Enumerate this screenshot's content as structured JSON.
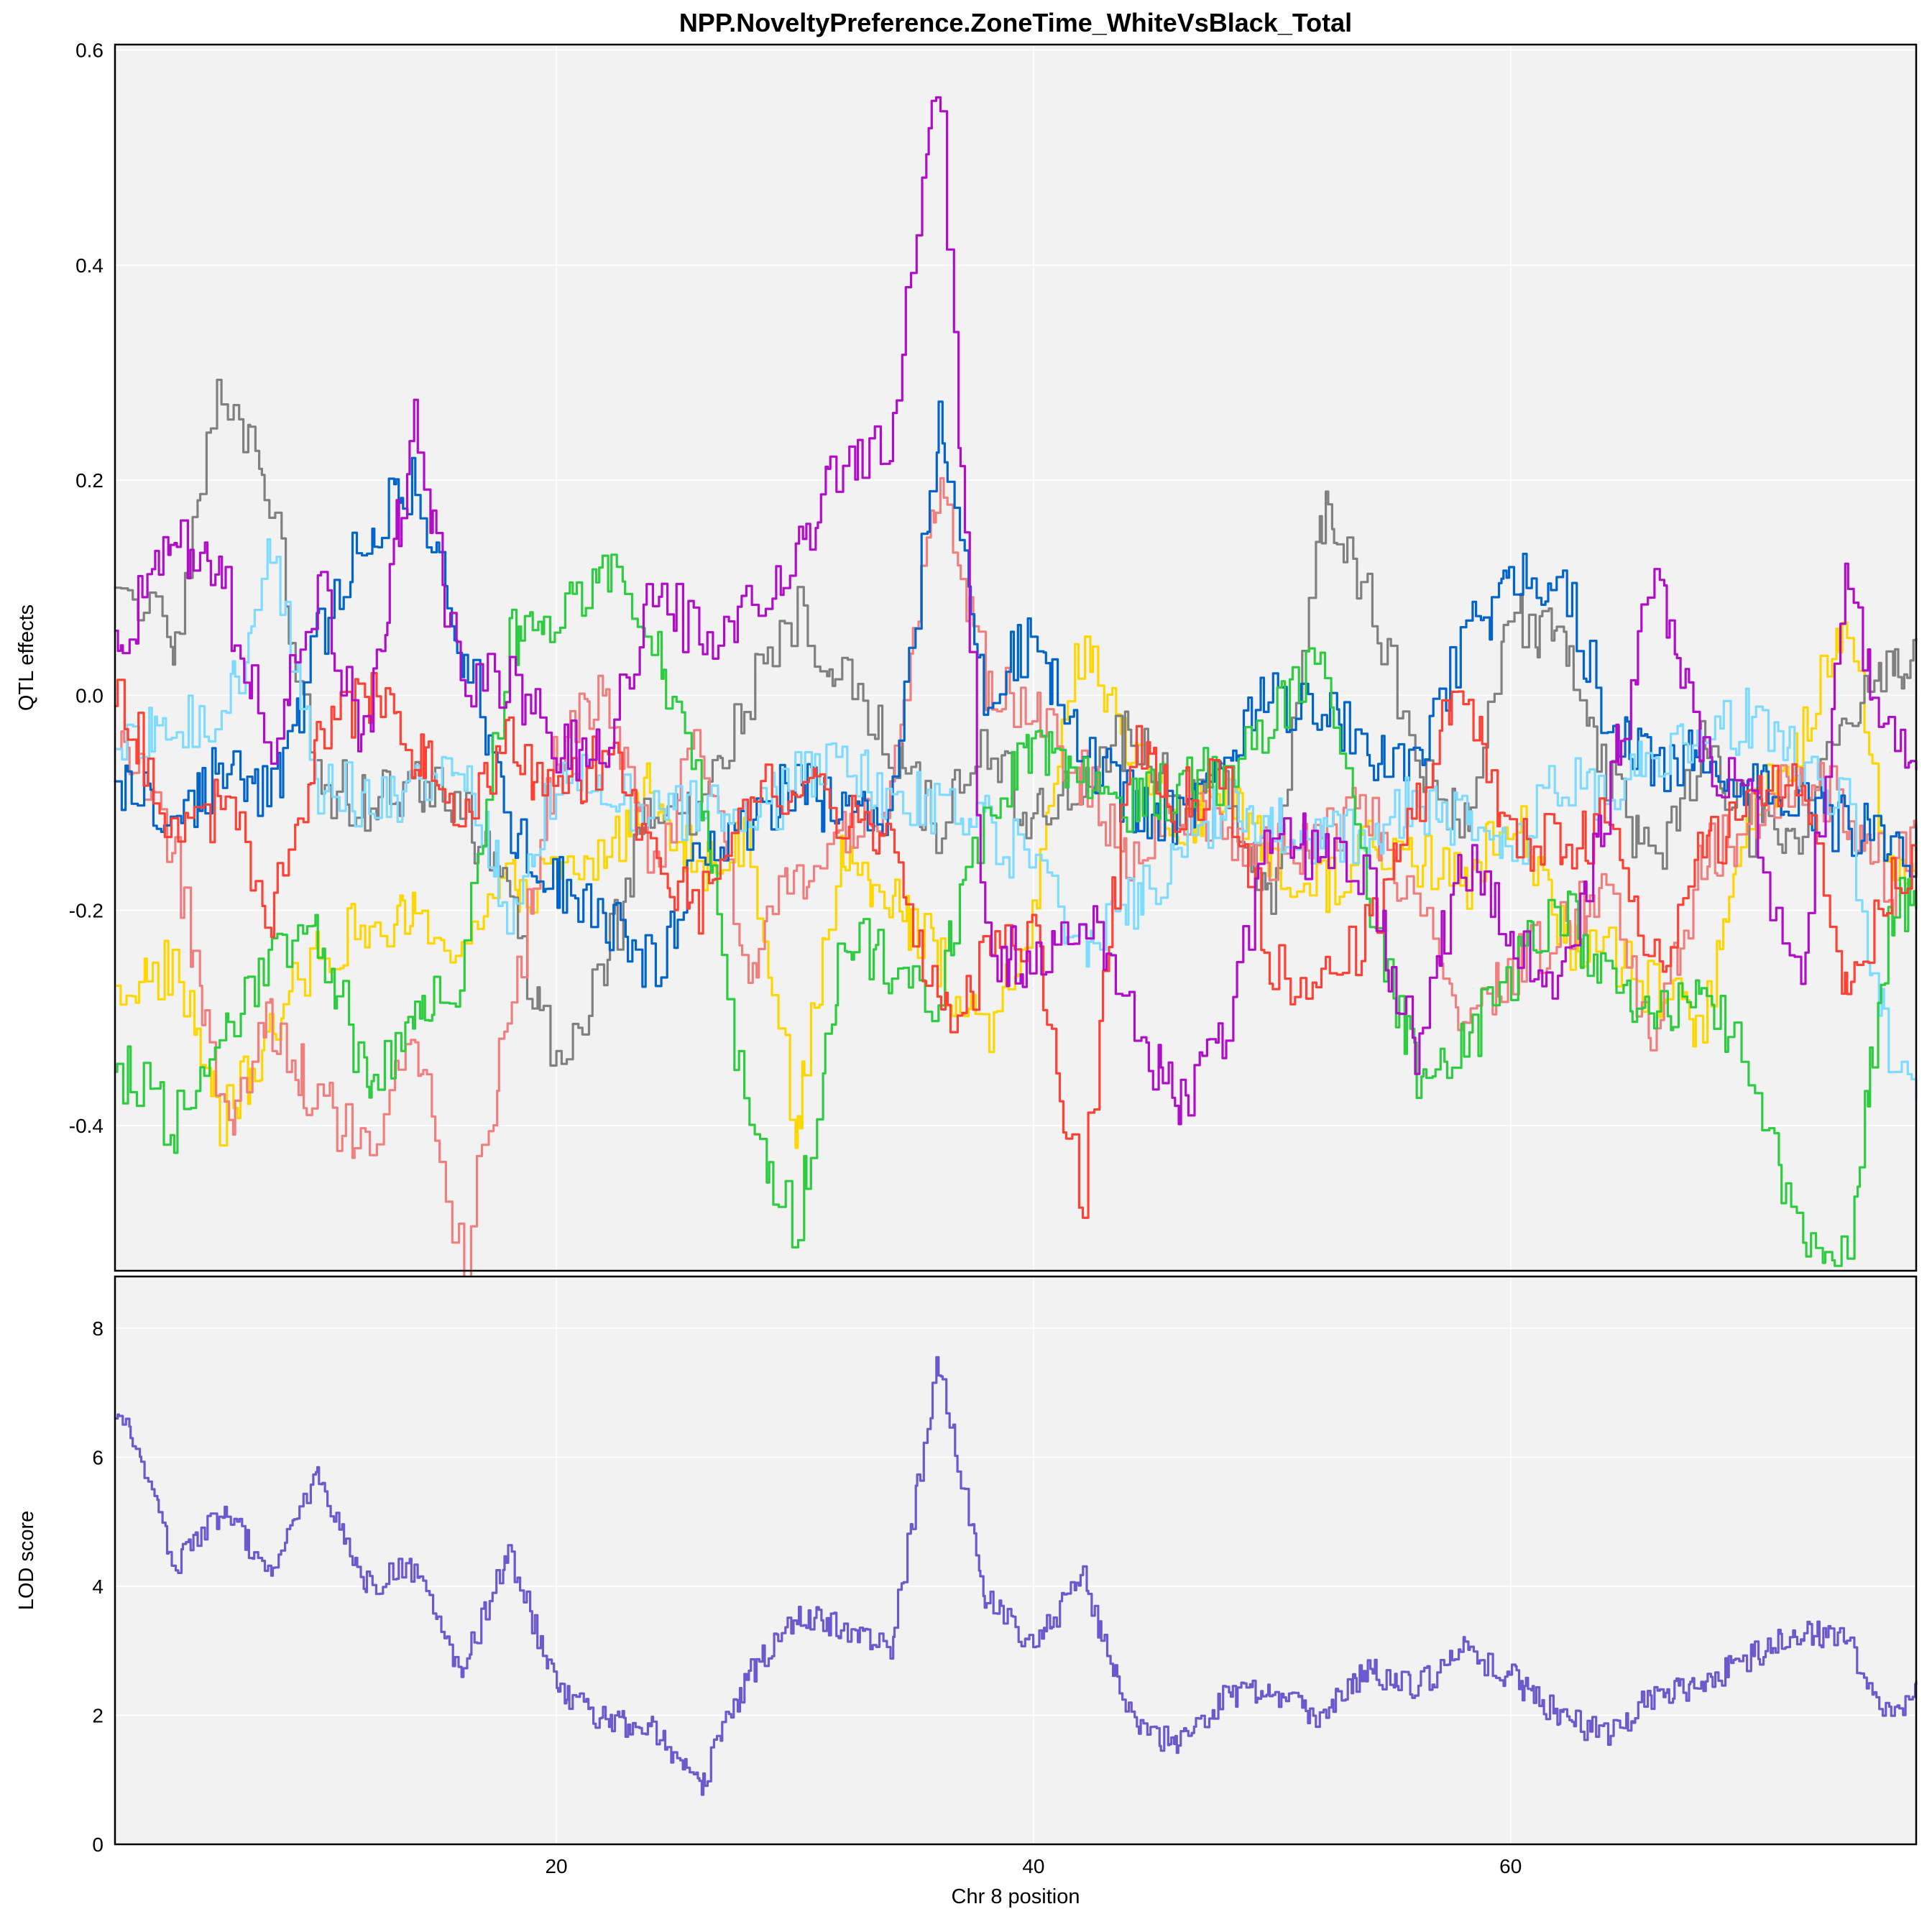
{
  "chart_data": [
    {
      "type": "line",
      "panel": "effects",
      "title": "NPP.NoveltyPreference.ZoneTime_WhiteVsBlack_Total",
      "xlabel": "",
      "ylabel": "QTL effects",
      "xlim": [
        1.5,
        77
      ],
      "ylim": [
        -0.535,
        0.605
      ],
      "yticks": [
        -0.4,
        -0.2,
        0.0,
        0.2,
        0.4,
        0.6
      ],
      "ytick_labels": [
        "-0.4",
        "-0.2",
        "0.0",
        "0.2",
        "0.4",
        "0.6"
      ],
      "xgrid": [
        20,
        40,
        60
      ],
      "grid": true,
      "x": [
        2,
        4,
        6,
        8,
        10,
        12,
        14,
        16,
        18,
        20,
        22,
        24,
        26,
        28,
        30,
        32,
        34,
        36,
        38,
        40,
        42,
        44,
        46,
        48,
        50,
        52,
        54,
        56,
        58,
        60,
        62,
        64,
        66,
        68,
        70,
        72,
        74,
        76,
        77
      ],
      "series": [
        {
          "color": "#ffd700",
          "values": [
            -0.27,
            -0.25,
            -0.4,
            -0.32,
            -0.23,
            -0.22,
            -0.21,
            -0.23,
            -0.18,
            -0.17,
            -0.15,
            -0.08,
            -0.17,
            -0.12,
            -0.4,
            -0.15,
            -0.18,
            -0.25,
            -0.33,
            -0.2,
            0.05,
            -0.05,
            -0.12,
            -0.1,
            -0.16,
            -0.18,
            -0.14,
            -0.15,
            -0.18,
            -0.1,
            -0.22,
            -0.24,
            -0.28,
            -0.3,
            -0.12,
            -0.05,
            0.08,
            -0.18,
            -0.15
          ]
        },
        {
          "color": "#808080",
          "values": [
            0.1,
            0.05,
            0.3,
            0.18,
            -0.08,
            -0.1,
            -0.08,
            -0.1,
            -0.2,
            -0.36,
            -0.25,
            -0.1,
            -0.1,
            0.0,
            0.08,
            0.02,
            -0.05,
            -0.12,
            -0.05,
            -0.12,
            -0.07,
            -0.04,
            -0.1,
            -0.08,
            -0.2,
            0.17,
            0.1,
            -0.05,
            -0.12,
            0.08,
            0.05,
            -0.08,
            -0.16,
            -0.04,
            -0.12,
            -0.15,
            -0.02,
            0.03,
            0.04
          ]
        },
        {
          "color": "#f08080",
          "values": [
            -0.05,
            -0.15,
            -0.41,
            -0.3,
            -0.38,
            -0.42,
            -0.3,
            -0.53,
            -0.3,
            -0.05,
            0.0,
            -0.15,
            -0.05,
            -0.25,
            -0.17,
            -0.13,
            -0.1,
            0.2,
            0.0,
            0.0,
            -0.08,
            -0.15,
            -0.1,
            -0.13,
            -0.15,
            -0.14,
            -0.1,
            -0.2,
            -0.3,
            -0.25,
            -0.22,
            -0.18,
            -0.32,
            -0.15,
            -0.12,
            -0.08,
            -0.1,
            -0.18,
            -0.1
          ]
        },
        {
          "color": "#0064c9",
          "values": [
            -0.08,
            -0.12,
            -0.06,
            -0.1,
            0.05,
            0.15,
            0.2,
            0.05,
            -0.12,
            -0.17,
            -0.2,
            -0.26,
            -0.15,
            -0.12,
            -0.08,
            -0.12,
            -0.1,
            0.25,
            0.0,
            0.06,
            -0.05,
            -0.1,
            -0.12,
            -0.05,
            0.0,
            -0.02,
            -0.05,
            -0.07,
            0.05,
            0.1,
            0.12,
            -0.02,
            -0.06,
            -0.06,
            -0.08,
            -0.1,
            -0.12,
            -0.14,
            -0.15
          ]
        },
        {
          "color": "#7fdbff",
          "values": [
            -0.05,
            -0.02,
            -0.03,
            0.14,
            -0.08,
            -0.1,
            -0.09,
            -0.06,
            -0.2,
            -0.08,
            -0.08,
            -0.12,
            -0.1,
            -0.12,
            -0.08,
            -0.06,
            -0.09,
            -0.1,
            -0.12,
            -0.16,
            -0.23,
            -0.2,
            -0.14,
            -0.1,
            -0.12,
            -0.14,
            -0.13,
            -0.1,
            -0.12,
            -0.15,
            -0.08,
            -0.1,
            -0.05,
            -0.04,
            -0.02,
            -0.06,
            -0.1,
            -0.35,
            -0.36
          ]
        },
        {
          "color": "#2ecc40",
          "values": [
            -0.35,
            -0.4,
            -0.33,
            -0.25,
            -0.22,
            -0.36,
            -0.3,
            -0.26,
            0.05,
            0.08,
            0.12,
            0.06,
            -0.1,
            -0.4,
            -0.5,
            -0.22,
            -0.25,
            -0.28,
            -0.1,
            -0.05,
            -0.08,
            -0.1,
            -0.09,
            -0.07,
            -0.02,
            0.05,
            -0.2,
            -0.35,
            -0.33,
            -0.26,
            -0.2,
            -0.25,
            -0.3,
            -0.26,
            -0.35,
            -0.5,
            -0.52,
            -0.2,
            -0.18
          ]
        },
        {
          "color": "#ff4136",
          "values": [
            -0.01,
            -0.15,
            -0.1,
            -0.2,
            -0.05,
            0.0,
            -0.05,
            -0.1,
            -0.04,
            -0.1,
            -0.05,
            -0.15,
            -0.2,
            -0.1,
            -0.08,
            -0.12,
            -0.13,
            -0.3,
            -0.25,
            -0.22,
            -0.48,
            -0.05,
            -0.1,
            -0.08,
            -0.25,
            -0.28,
            -0.22,
            -0.1,
            0.02,
            -0.14,
            -0.14,
            -0.12,
            -0.25,
            -0.15,
            -0.1,
            -0.07,
            -0.28,
            -0.16,
            -0.15
          ]
        },
        {
          "color": "#b10dc9",
          "values": [
            0.06,
            0.15,
            0.1,
            -0.05,
            0.1,
            -0.05,
            0.26,
            0.0,
            0.02,
            -0.05,
            -0.05,
            0.1,
            0.05,
            0.08,
            0.13,
            0.22,
            0.23,
            0.6,
            -0.25,
            -0.24,
            -0.2,
            -0.3,
            -0.38,
            -0.32,
            -0.12,
            -0.15,
            -0.18,
            -0.33,
            -0.15,
            -0.22,
            -0.26,
            -0.1,
            0.12,
            -0.05,
            -0.1,
            -0.28,
            0.1,
            -0.05,
            -0.05
          ]
        }
      ]
    },
    {
      "type": "line",
      "panel": "lod",
      "title": "",
      "xlabel": "Chr 8 position",
      "ylabel": "LOD score",
      "xlim": [
        1.5,
        77
      ],
      "ylim": [
        0,
        8.8
      ],
      "yticks": [
        0,
        2,
        4,
        6,
        8
      ],
      "ytick_labels": [
        "0",
        "2",
        "4",
        "6",
        "8"
      ],
      "xticks": [
        20,
        40,
        60
      ],
      "xtick_labels": [
        "20",
        "40",
        "60"
      ],
      "grid": true,
      "x": [
        2,
        4,
        6,
        8,
        10,
        12,
        14,
        16,
        18,
        20,
        22,
        24,
        26,
        28,
        30,
        32,
        34,
        36,
        38,
        40,
        42,
        44,
        46,
        48,
        50,
        52,
        54,
        56,
        58,
        60,
        62,
        64,
        66,
        68,
        70,
        72,
        74,
        76,
        77
      ],
      "series": [
        {
          "color": "#6a5acd",
          "values": [
            6.6,
            4.3,
            5.2,
            4.2,
            5.7,
            4.0,
            4.3,
            2.7,
            4.5,
            2.4,
            1.9,
            1.8,
            0.9,
            2.6,
            3.5,
            3.4,
            3.0,
            7.5,
            3.8,
            3.0,
            4.2,
            2.0,
            1.5,
            2.3,
            2.4,
            2.0,
            2.7,
            2.4,
            3.0,
            2.6,
            2.0,
            1.7,
            2.3,
            2.5,
            2.9,
            3.3,
            3.2,
            1.9,
            2.3
          ]
        }
      ]
    }
  ]
}
